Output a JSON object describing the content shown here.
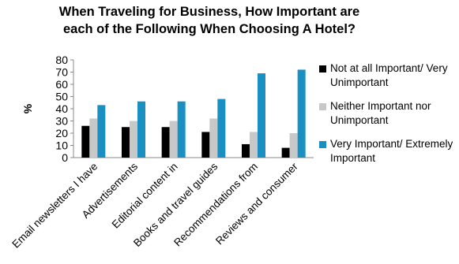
{
  "chart_data": {
    "type": "bar",
    "title": "When Traveling for Business, How Important are each of the Following When Choosing A Hotel?",
    "ylabel": "%",
    "xlabel": "",
    "ylim": [
      0,
      80
    ],
    "yticks": [
      0,
      10,
      20,
      30,
      40,
      50,
      60,
      70,
      80
    ],
    "grid": false,
    "legend_position": "right",
    "categories": [
      "Email newsletters I have",
      "Advertisements",
      "Editorial content in",
      "Books and travel guides",
      "Recommendations from",
      "Reviews and consumer"
    ],
    "series": [
      {
        "name": "Not at all Important/ Very Unimportant",
        "color": "#000000",
        "values": [
          26,
          25,
          25,
          21,
          11,
          8
        ]
      },
      {
        "name": "Neither Important nor Unimportant",
        "color": "#c8c8c8",
        "values": [
          32,
          30,
          30,
          32,
          21,
          20
        ]
      },
      {
        "name": "Very Important/ Extremely Important",
        "color": "#1a8fc2",
        "values": [
          43,
          46,
          46,
          48,
          69,
          72
        ]
      }
    ]
  }
}
